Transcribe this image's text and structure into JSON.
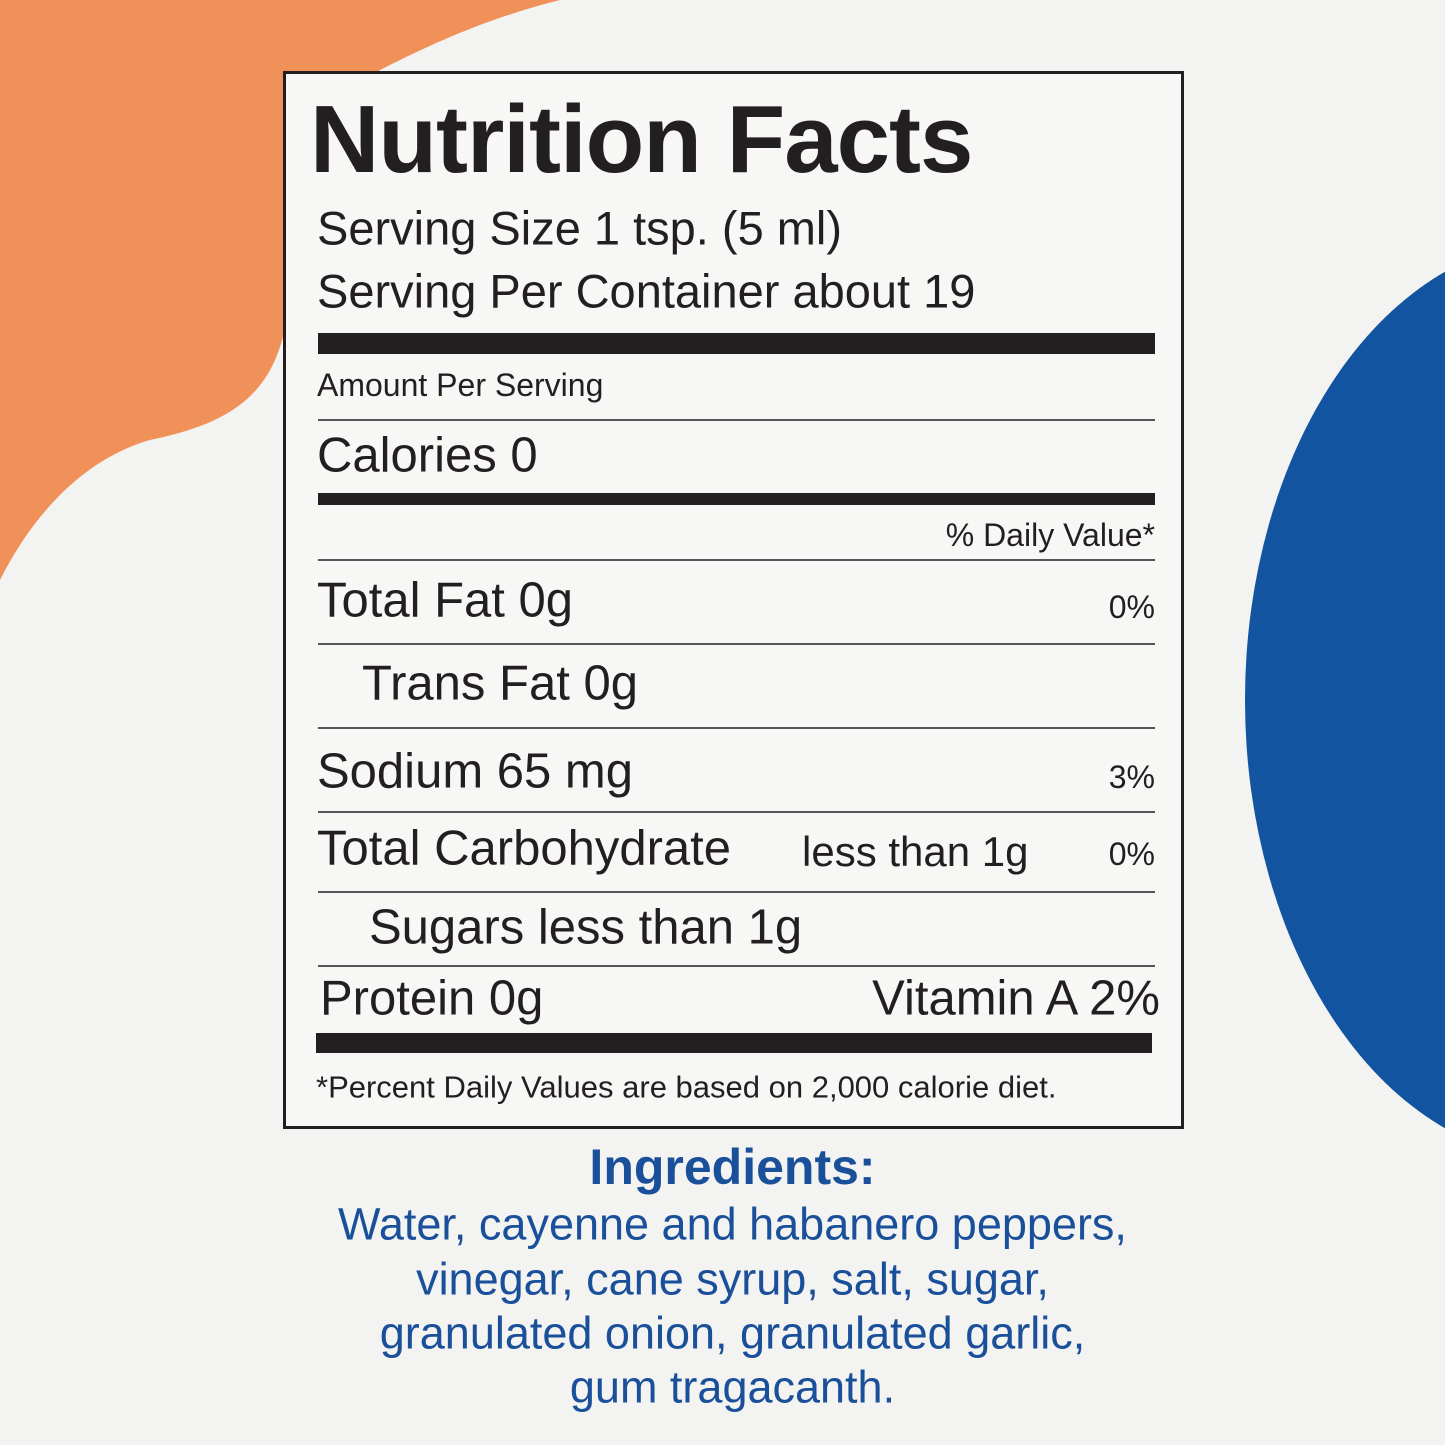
{
  "label": {
    "title": "Nutrition Facts",
    "serving_size": "Serving Size 1 tsp. (5 ml)",
    "servings_per_container": "Serving Per Container about 19",
    "amount_per_serving": "Amount Per Serving",
    "calories": "Calories 0",
    "daily_value_header": "% Daily Value*",
    "rows": [
      {
        "label": "Total Fat 0g",
        "dv": "0%"
      },
      {
        "label": "Trans Fat 0g"
      },
      {
        "label": "Sodium 65 mg",
        "dv": "3%"
      },
      {
        "label": "Total Carbohydrate",
        "amount": "less than 1g",
        "dv": "0%"
      },
      {
        "label": "Sugars less than 1g"
      }
    ],
    "protein": "Protein 0g",
    "vitamin_a": "Vitamin A 2%",
    "footnote": "*Percent Daily Values are based on 2,000 calorie diet."
  },
  "ingredients": {
    "title": "Ingredients:",
    "lines": [
      "Water, cayenne and habanero peppers,",
      "vinegar, cane syrup, salt, sugar,",
      "granulated onion, granulated garlic,",
      "gum tragacanth."
    ]
  }
}
